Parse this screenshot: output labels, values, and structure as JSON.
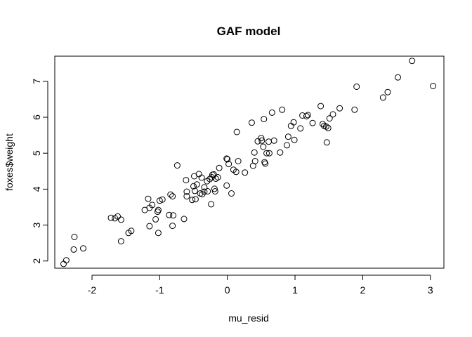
{
  "chart_data": {
    "type": "scatter",
    "title": "GAF model",
    "xlabel": "mu_resid",
    "ylabel": "foxes$weight",
    "xlim": [
      -2.55,
      3.2
    ],
    "ylim": [
      1.8,
      7.7
    ],
    "xticks": [
      -2,
      -1,
      0,
      1,
      2,
      3
    ],
    "yticks": [
      2,
      3,
      4,
      5,
      6,
      7
    ],
    "xtick_labels": [
      "-2",
      "-1",
      "0",
      "1",
      "2",
      "3"
    ],
    "ytick_labels": [
      "2",
      "3",
      "4",
      "5",
      "6",
      "7"
    ],
    "grid": false,
    "legend": "none",
    "series": [
      {
        "points": [
          [
            -2.42,
            1.92
          ],
          [
            -2.38,
            2.02
          ],
          [
            -2.27,
            2.32
          ],
          [
            -2.26,
            2.67
          ],
          [
            -2.13,
            2.35
          ],
          [
            -1.72,
            3.2
          ],
          [
            -1.66,
            3.19
          ],
          [
            -1.62,
            3.24
          ],
          [
            -1.57,
            2.55
          ],
          [
            -1.57,
            3.15
          ],
          [
            -1.46,
            2.78
          ],
          [
            -1.42,
            2.84
          ],
          [
            -1.22,
            3.42
          ],
          [
            -1.17,
            3.73
          ],
          [
            -1.15,
            3.48
          ],
          [
            -1.15,
            2.97
          ],
          [
            -1.11,
            3.56
          ],
          [
            -1.06,
            3.16
          ],
          [
            -1.03,
            3.37
          ],
          [
            -1.02,
            3.42
          ],
          [
            -1.02,
            2.78
          ],
          [
            -1.0,
            3.68
          ],
          [
            -0.96,
            3.71
          ],
          [
            -0.86,
            3.28
          ],
          [
            -0.84,
            3.85
          ],
          [
            -0.81,
            3.8
          ],
          [
            -0.81,
            2.98
          ],
          [
            -0.8,
            3.27
          ],
          [
            -0.74,
            4.66
          ],
          [
            -0.64,
            3.17
          ],
          [
            -0.61,
            4.25
          ],
          [
            -0.6,
            3.93
          ],
          [
            -0.6,
            3.8
          ],
          [
            -0.52,
            3.7
          ],
          [
            -0.5,
            4.08
          ],
          [
            -0.49,
            4.36
          ],
          [
            -0.48,
            3.95
          ],
          [
            -0.47,
            3.72
          ],
          [
            -0.45,
            4.13
          ],
          [
            -0.42,
            4.42
          ],
          [
            -0.4,
            3.88
          ],
          [
            -0.38,
            4.32
          ],
          [
            -0.37,
            3.86
          ],
          [
            -0.34,
            4.05
          ],
          [
            -0.34,
            3.93
          ],
          [
            -0.3,
            4.22
          ],
          [
            -0.29,
            3.94
          ],
          [
            -0.26,
            4.28
          ],
          [
            -0.24,
            3.58
          ],
          [
            -0.23,
            4.33
          ],
          [
            -0.22,
            4.4
          ],
          [
            -0.2,
            4.41
          ],
          [
            -0.19,
            4.01
          ],
          [
            -0.18,
            3.94
          ],
          [
            -0.17,
            4.29
          ],
          [
            -0.14,
            4.33
          ],
          [
            -0.12,
            4.59
          ],
          [
            -0.01,
            4.85
          ],
          [
            -0.01,
            4.1
          ],
          [
            0.0,
            4.83
          ],
          [
            0.02,
            4.7
          ],
          [
            0.06,
            3.88
          ],
          [
            0.09,
            4.54
          ],
          [
            0.13,
            4.48
          ],
          [
            0.14,
            5.59
          ],
          [
            0.16,
            4.78
          ],
          [
            0.26,
            4.46
          ],
          [
            0.36,
            5.85
          ],
          [
            0.38,
            4.65
          ],
          [
            0.4,
            5.02
          ],
          [
            0.41,
            4.78
          ],
          [
            0.45,
            5.33
          ],
          [
            0.5,
            5.42
          ],
          [
            0.51,
            5.35
          ],
          [
            0.53,
            5.18
          ],
          [
            0.54,
            5.95
          ],
          [
            0.55,
            4.75
          ],
          [
            0.56,
            4.71
          ],
          [
            0.58,
            5.0
          ],
          [
            0.61,
            5.32
          ],
          [
            0.62,
            5.0
          ],
          [
            0.66,
            6.13
          ],
          [
            0.69,
            5.35
          ],
          [
            0.78,
            5.02
          ],
          [
            0.81,
            6.21
          ],
          [
            0.88,
            5.22
          ],
          [
            0.9,
            5.46
          ],
          [
            0.94,
            5.76
          ],
          [
            0.98,
            5.86
          ],
          [
            0.99,
            5.37
          ],
          [
            1.08,
            5.69
          ],
          [
            1.11,
            6.05
          ],
          [
            1.17,
            6.03
          ],
          [
            1.19,
            6.06
          ],
          [
            1.26,
            5.84
          ],
          [
            1.38,
            6.31
          ],
          [
            1.41,
            5.81
          ],
          [
            1.43,
            5.76
          ],
          [
            1.46,
            5.74
          ],
          [
            1.47,
            5.3
          ],
          [
            1.49,
            5.7
          ],
          [
            1.51,
            5.97
          ],
          [
            1.56,
            6.08
          ],
          [
            1.66,
            6.25
          ],
          [
            1.88,
            6.21
          ],
          [
            1.91,
            6.85
          ],
          [
            2.3,
            6.55
          ],
          [
            2.37,
            6.7
          ],
          [
            2.52,
            7.11
          ],
          [
            2.73,
            7.57
          ],
          [
            3.04,
            6.87
          ]
        ]
      }
    ]
  }
}
